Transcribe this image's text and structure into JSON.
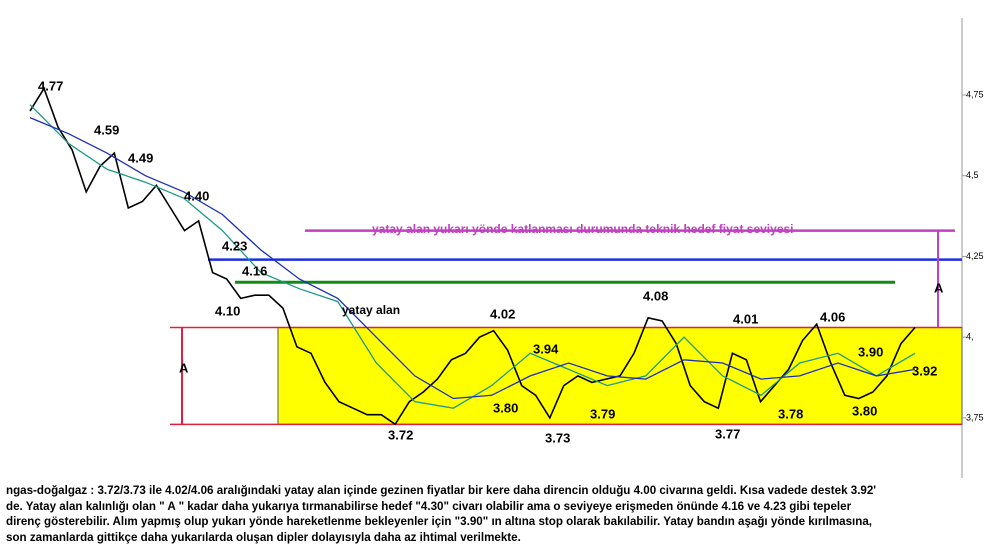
{
  "chart_data": {
    "type": "line",
    "ylim": [
      3.57,
      4.99
    ],
    "yticks": [
      {
        "value": 3.75,
        "label": "3,75"
      },
      {
        "value": 4,
        "label": "4,"
      },
      {
        "value": 4.25,
        "label": "4,25"
      },
      {
        "value": 4.5,
        "label": "4,5"
      },
      {
        "value": 4.75,
        "label": "4,75"
      }
    ],
    "series": [
      {
        "color": "#000000",
        "values": [
          4.7,
          4.77,
          4.65,
          4.58,
          4.45,
          4.53,
          4.57,
          4.4,
          4.42,
          4.47,
          4.4,
          4.33,
          4.36,
          4.2,
          4.18,
          4.12,
          4.13,
          4.13,
          4.09,
          3.97,
          3.95,
          3.86,
          3.8,
          3.78,
          3.76,
          3.76,
          3.73,
          3.8,
          3.83,
          3.87,
          3.93,
          3.95,
          4.0,
          4.02,
          3.96,
          3.85,
          3.82,
          3.75,
          3.85,
          3.88,
          3.86,
          3.87,
          3.88,
          3.95,
          4.06,
          4.05,
          3.98,
          3.85,
          3.8,
          3.78,
          3.95,
          3.93,
          3.8,
          3.85,
          3.9,
          3.99,
          4.04,
          3.92,
          3.82,
          3.81,
          3.83,
          3.88,
          3.98,
          4.03
        ]
      },
      {
        "color": "#1a9a8a",
        "values": [
          4.72,
          4.6,
          4.52,
          4.48,
          4.43,
          4.33,
          4.2,
          4.15,
          4.11,
          3.92,
          3.8,
          3.78,
          3.85,
          3.95,
          3.9,
          3.85,
          3.88,
          4.0,
          3.88,
          3.82,
          3.92,
          3.95,
          3.88,
          3.95
        ]
      },
      {
        "color": "#1c2fb8",
        "values": [
          4.68,
          4.63,
          4.57,
          4.5,
          4.45,
          4.38,
          4.27,
          4.18,
          4.12,
          4.0,
          3.88,
          3.81,
          3.82,
          3.88,
          3.92,
          3.88,
          3.87,
          3.93,
          3.92,
          3.87,
          3.88,
          3.92,
          3.88,
          3.9
        ]
      }
    ],
    "levels": [
      {
        "value": 4.33,
        "color": "#c040c0"
      },
      {
        "value": 4.24,
        "color": "#1c2fe0"
      },
      {
        "value": 4.17,
        "color": "#138a13"
      }
    ],
    "range_box": {
      "top": 4.03,
      "bottom": 3.73,
      "fill": "#ffff00",
      "edge": "#e02040"
    },
    "annotations": [
      "4.77",
      "4.59",
      "4.49",
      "4.40",
      "4.23",
      "4.16",
      "4.10",
      "yatay alan",
      "4.02",
      "3.94",
      "3.80",
      "3.72",
      "3.73",
      "3.79",
      "4.08",
      "4.01",
      "3.77",
      "3.78",
      "4.06",
      "3.90",
      "3.80",
      "3.92",
      "A",
      "A",
      "yatay alan yukarı yönde katlanması durumunda teknik hedef fiyat seviyesi"
    ]
  },
  "caption": [
    "ngas-doğalgaz : 3.72/3.73 ile 4.02/4.06 aralığındaki yatay alan içinde gezinen fiyatlar bir kere daha direncin olduğu 4.00 civarına geldi. Kısa vadede destek 3.92'",
    "de. Yatay alan kalınlığı olan \" A \" kadar daha yukarıya tırmanabilirse hedef \"4.30\" civarı olabilir ama o seviyeye erişmeden önünde 4.16 ve 4.23 gibi tepeler",
    "direnç gösterebilir. Alım yapmış olup yukarı yönde hareketlenme bekleyenler için \"3.90\" ın altına stop olarak bakılabilir. Yatay bandın aşağı yönde kırılmasına,",
    "son zamanlarda gittikçe daha yukarılarda oluşan dipler dolayısıyla daha az ihtimal verilmekte."
  ]
}
